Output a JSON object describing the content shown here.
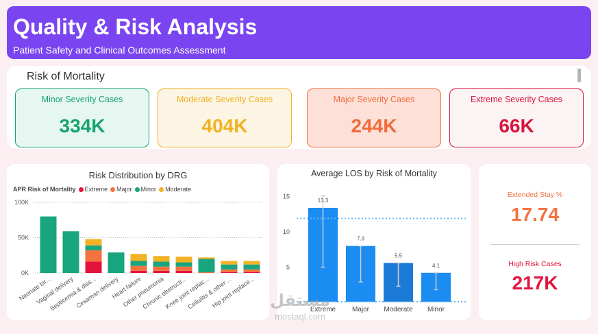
{
  "header": {
    "title": "Quality & Risk Analysis",
    "subtitle": "Patient Safety and Clinical Outcomes Assessment"
  },
  "mortality": {
    "title": "Risk of Mortality",
    "cards": [
      {
        "label": "Minor Severity Cases",
        "value": "334K",
        "color": "#1aa36f",
        "bg": "#e6f7f2",
        "border": "#1aa36f"
      },
      {
        "label": "Moderate Severity Cases",
        "value": "404K",
        "color": "#f2b122",
        "bg": "#fdf5e3",
        "border": "#f2b122"
      },
      {
        "label": "Major Severity Cases",
        "value": "244K",
        "color": "#f26a3a",
        "bg": "#fde1d8",
        "border": "#f26a3a"
      },
      {
        "label": "Extreme Severity Cases",
        "value": "66K",
        "color": "#d6163c",
        "bg": "#fcf3f5",
        "border": "#d6163c"
      }
    ]
  },
  "colors": {
    "extreme": "#e3143c",
    "major": "#f4723f",
    "minor": "#19a57e",
    "moderate": "#f2b225",
    "los_bar": "#1a8cf2",
    "los_bar_dark": "#1c7bd6",
    "ref_line": "#6ab7f0"
  },
  "drg_chart": {
    "legend": {
      "title": "APR Risk of Mortality",
      "items": [
        {
          "name": "Extreme",
          "key": "extreme"
        },
        {
          "name": "Major",
          "key": "major"
        },
        {
          "name": "Minor",
          "key": "minor"
        },
        {
          "name": "Moderate",
          "key": "moderate"
        }
      ]
    }
  },
  "los_stats": {
    "extended_label": "Extended Stay %",
    "extended_value": "17.74",
    "high_risk_label": "High Risk Cases",
    "high_risk_value": "217K"
  },
  "watermark": {
    "arabic": "مستقل",
    "latin": "mostaql.com"
  },
  "chart_data": [
    {
      "type": "bar",
      "stacked": true,
      "title": "Risk Distribution by DRG",
      "xlabel": "",
      "ylabel": "",
      "ylim": [
        0,
        100000
      ],
      "yticks": [
        {
          "value": 0,
          "label": "0K"
        },
        {
          "value": 50000,
          "label": "50K"
        },
        {
          "value": 100000,
          "label": "100K"
        }
      ],
      "gridlines": true,
      "categories": [
        "Neonate bir...",
        "Vaginal delivery",
        "Septicemia & diss...",
        "Cesarean delivery",
        "Heart failure",
        "Other pneumonia",
        "Chronic obstructi...",
        "Knee joint replac...",
        "Cellulitis & other ...",
        "Hip joint replace..."
      ],
      "series": [
        {
          "name": "Extreme",
          "key": "extreme",
          "values": [
            0,
            0,
            16000,
            0,
            3000,
            3000,
            3000,
            0,
            1000,
            1000
          ]
        },
        {
          "name": "Major",
          "key": "major",
          "values": [
            0,
            0,
            16000,
            0,
            7000,
            6000,
            6000,
            1000,
            4000,
            4000
          ]
        },
        {
          "name": "Minor",
          "key": "minor",
          "values": [
            80000,
            59000,
            7000,
            29000,
            7000,
            7000,
            6000,
            19000,
            7000,
            7000
          ]
        },
        {
          "name": "Moderate",
          "key": "moderate",
          "values": [
            0,
            0,
            9000,
            0,
            10000,
            8000,
            8000,
            2000,
            5000,
            5000
          ]
        }
      ]
    },
    {
      "type": "bar",
      "title": "Average LOS by Risk of Mortality",
      "xlabel": "",
      "ylabel": "",
      "ylim": [
        0,
        16.5
      ],
      "yticks": [
        {
          "value": 5,
          "label": "5"
        },
        {
          "value": 10,
          "label": "10"
        },
        {
          "value": 15,
          "label": "15"
        }
      ],
      "categories": [
        "Extreme",
        "Major",
        "Moderate",
        "Minor"
      ],
      "values": [
        13.3,
        7.9,
        5.5,
        4.1
      ],
      "labels": [
        "13.3",
        "7.9",
        "5.5",
        "4.1"
      ],
      "error_bars": [
        [
          4.9,
          15.0
        ],
        [
          2.8,
          7.9
        ],
        [
          2.2,
          5.5
        ],
        [
          1.7,
          4.1
        ]
      ],
      "reference_lines": [
        0,
        11.8
      ]
    }
  ]
}
